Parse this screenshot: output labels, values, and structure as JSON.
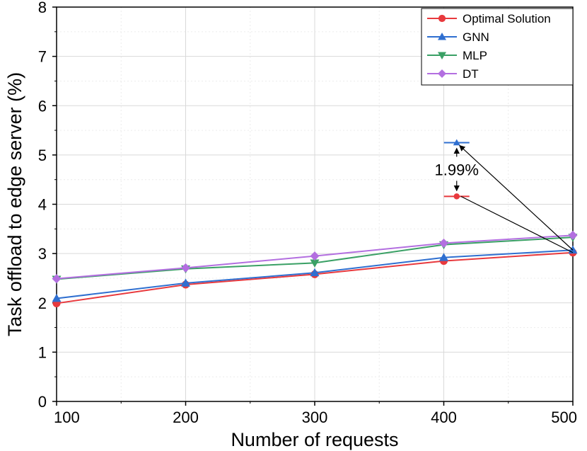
{
  "chart_data": {
    "type": "line",
    "title": "",
    "xlabel": "Number of requests",
    "ylabel": "Task offload to edge server (%)",
    "x": [
      100,
      200,
      300,
      400,
      500
    ],
    "xlim": [
      100,
      500
    ],
    "ylim": [
      0,
      8
    ],
    "xticks": [
      100,
      200,
      300,
      400,
      500
    ],
    "yticks": [
      0,
      1,
      2,
      3,
      4,
      5,
      6,
      7,
      8
    ],
    "grid": true,
    "legend_position": "top-right",
    "series": [
      {
        "name": "Optimal Solution",
        "color": "#e8393d",
        "marker": "circle",
        "values": [
          1.99,
          2.37,
          2.58,
          2.85,
          3.02
        ]
      },
      {
        "name": "GNN",
        "color": "#2f6fd0",
        "marker": "triangle-up",
        "values": [
          2.09,
          2.4,
          2.61,
          2.92,
          3.07
        ]
      },
      {
        "name": "MLP",
        "color": "#3aa065",
        "marker": "triangle-down",
        "values": [
          2.48,
          2.69,
          2.81,
          3.18,
          3.33
        ]
      },
      {
        "name": "DT",
        "color": "#b36fe0",
        "marker": "diamond",
        "values": [
          2.49,
          2.71,
          2.95,
          3.21,
          3.37
        ]
      }
    ],
    "annotation": {
      "text": "1.99%",
      "x": 410,
      "upper": {
        "series": "GNN",
        "y": 5.25
      },
      "lower": {
        "series": "Optimal Solution",
        "y": 4.16
      },
      "target_x": 500
    }
  }
}
